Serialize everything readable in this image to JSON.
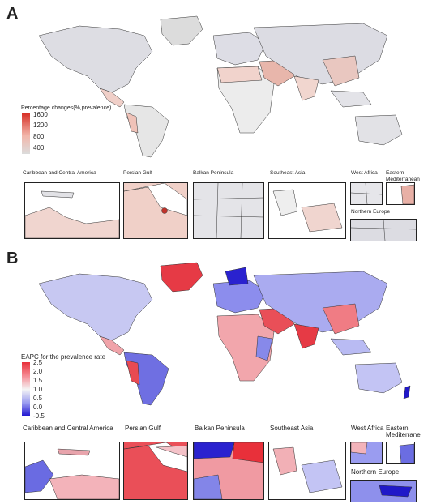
{
  "panel_a": {
    "letter": "A",
    "legend_title": "Percentage changes(%,prevalence)",
    "legend_ticks": [
      "1600",
      "1200",
      "800",
      "400"
    ],
    "legend_colors": [
      "#d73027",
      "#f2b6aa",
      "#dcdcdc"
    ],
    "regions": [
      {
        "label": "Caribbean and Central America"
      },
      {
        "label": "Persian Gulf"
      },
      {
        "label": "Balkan Peninsula"
      },
      {
        "label": "Southeast Asia"
      },
      {
        "label": "West Africa"
      },
      {
        "label": "Eastern Mediterranean"
      },
      {
        "label": "Northern Europe"
      }
    ]
  },
  "panel_b": {
    "letter": "B",
    "legend_title": "EAPC for the prevalence rate",
    "legend_ticks": [
      "2.5",
      "2.0",
      "1.5",
      "1.0",
      "0.5",
      "0.0",
      "-0.5"
    ],
    "legend_colors": [
      "#e8303a",
      "#f58a93",
      "#f5f5f5",
      "#9a9cf0",
      "#1a10d0"
    ],
    "regions": [
      {
        "label": "Caribbean and Central America"
      },
      {
        "label": "Persian Gulf"
      },
      {
        "label": "Balkan Peninsula"
      },
      {
        "label": "Southeast Asia"
      },
      {
        "label": "West Africa"
      },
      {
        "label": "Eastern Mediterrane"
      },
      {
        "label": "Northern Europe"
      }
    ]
  }
}
